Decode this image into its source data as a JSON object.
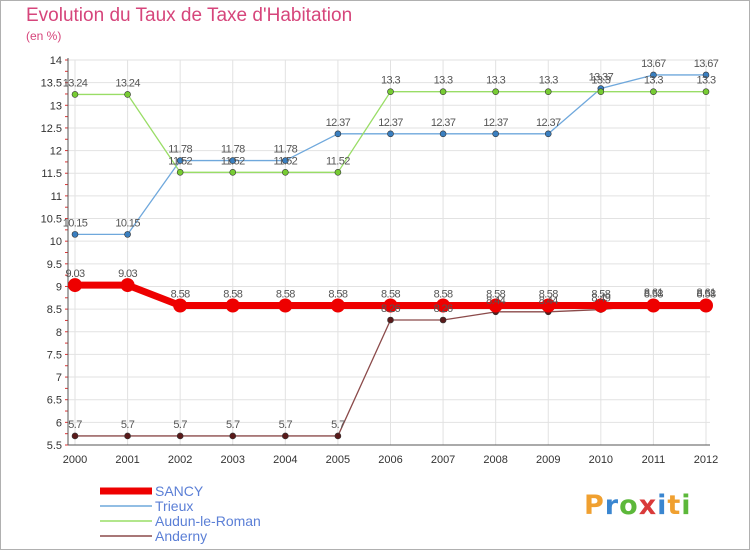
{
  "title": "Evolution du Taux de Taxe d'Habitation",
  "unit": "(en %)",
  "logo": {
    "text": "Proxiti"
  },
  "chart_data": {
    "type": "line",
    "x": [
      2000,
      2001,
      2002,
      2003,
      2004,
      2005,
      2006,
      2007,
      2008,
      2009,
      2010,
      2011,
      2012
    ],
    "ylim": [
      5.5,
      14
    ],
    "yticks": [
      5.5,
      6,
      6.5,
      7,
      7.5,
      8,
      8.5,
      9,
      9.5,
      10,
      10.5,
      11,
      11.5,
      12,
      12.5,
      13,
      13.5,
      14
    ],
    "legend_position": "bottom-left",
    "series": [
      {
        "name": "SANCY",
        "color": "#ee0000",
        "values": [
          9.03,
          9.03,
          8.58,
          8.58,
          8.58,
          8.58,
          8.58,
          8.58,
          8.58,
          8.58,
          8.58,
          8.58,
          8.58
        ]
      },
      {
        "name": "Trieux",
        "color": "#6fa8dc",
        "values": [
          10.15,
          10.15,
          11.78,
          11.78,
          11.78,
          12.37,
          12.37,
          12.37,
          12.37,
          12.37,
          13.37,
          13.67,
          13.67
        ]
      },
      {
        "name": "Audun-le-Roman",
        "color": "#99dd66",
        "values": [
          13.24,
          13.24,
          11.52,
          11.52,
          11.52,
          11.52,
          13.3,
          13.3,
          13.3,
          13.3,
          13.3,
          13.3,
          13.3
        ]
      },
      {
        "name": "Anderny",
        "color": "#8b4a4a",
        "values": [
          5.7,
          5.7,
          5.7,
          5.7,
          5.7,
          5.7,
          8.26,
          8.26,
          8.44,
          8.44,
          8.49,
          8.61,
          8.61
        ]
      }
    ]
  }
}
